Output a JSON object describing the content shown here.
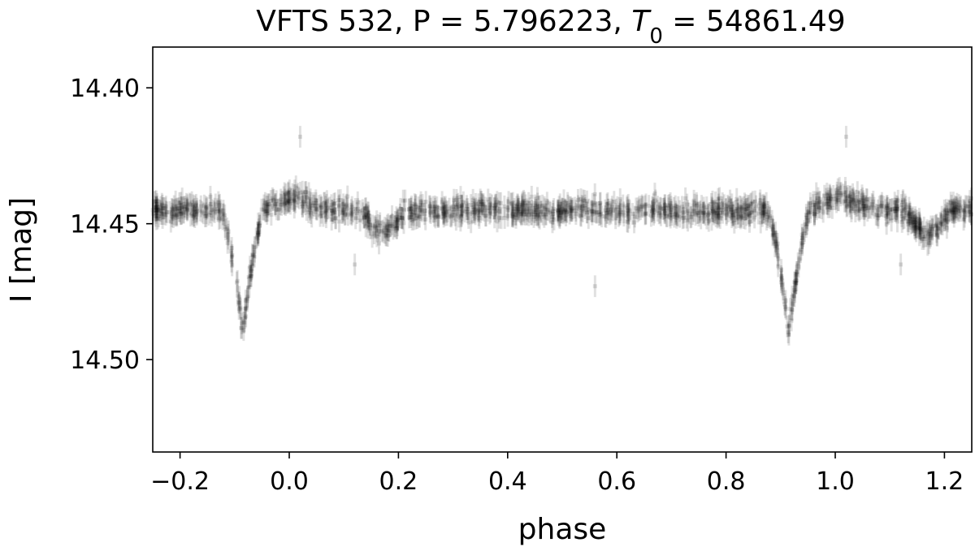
{
  "chart_data": {
    "type": "scatter",
    "title": {
      "prefix": "VFTS 532, P = 5.796223, ",
      "t_symbol": "T",
      "t_subscript": "0",
      "suffix": " = 54861.49"
    },
    "xlabel": "phase",
    "ylabel": "I [mag]",
    "xlim": [
      -0.25,
      1.25
    ],
    "ylim": [
      14.385,
      14.534
    ],
    "y_inverted": true,
    "x_ticks": [
      "−0.2",
      "0.0",
      "0.2",
      "0.4",
      "0.6",
      "0.8",
      "1.0",
      "1.2"
    ],
    "x_tick_values": [
      -0.2,
      0.0,
      0.2,
      0.4,
      0.6,
      0.8,
      1.0,
      1.2
    ],
    "y_ticks": [
      "14.40",
      "14.45",
      "14.50"
    ],
    "y_tick_values": [
      14.4,
      14.45,
      14.5
    ],
    "grid": false,
    "marker_color": "#000000",
    "marker_alpha": 0.12,
    "error_bar_mag": 0.004,
    "period_days": 5.796223,
    "t0": 54861.49,
    "light_curve_model": {
      "baseline_mag": 14.445,
      "primary_eclipse": {
        "phase": 0.915,
        "depth": 0.045,
        "half_width": 0.04
      },
      "secondary_eclipse": {
        "phase": 0.17,
        "depth": 0.01,
        "half_width": 0.045
      },
      "brightening_after_primary": {
        "phase": 1.01,
        "amount": -0.005
      },
      "scatter_sigma": 0.0045,
      "outliers": [
        {
          "x": 0.02,
          "y": 14.418
        },
        {
          "x": 1.02,
          "y": 14.418
        },
        {
          "x": 0.56,
          "y": 14.473
        },
        {
          "x": 0.12,
          "y": 14.465
        },
        {
          "x": 1.12,
          "y": 14.465
        }
      ]
    }
  }
}
